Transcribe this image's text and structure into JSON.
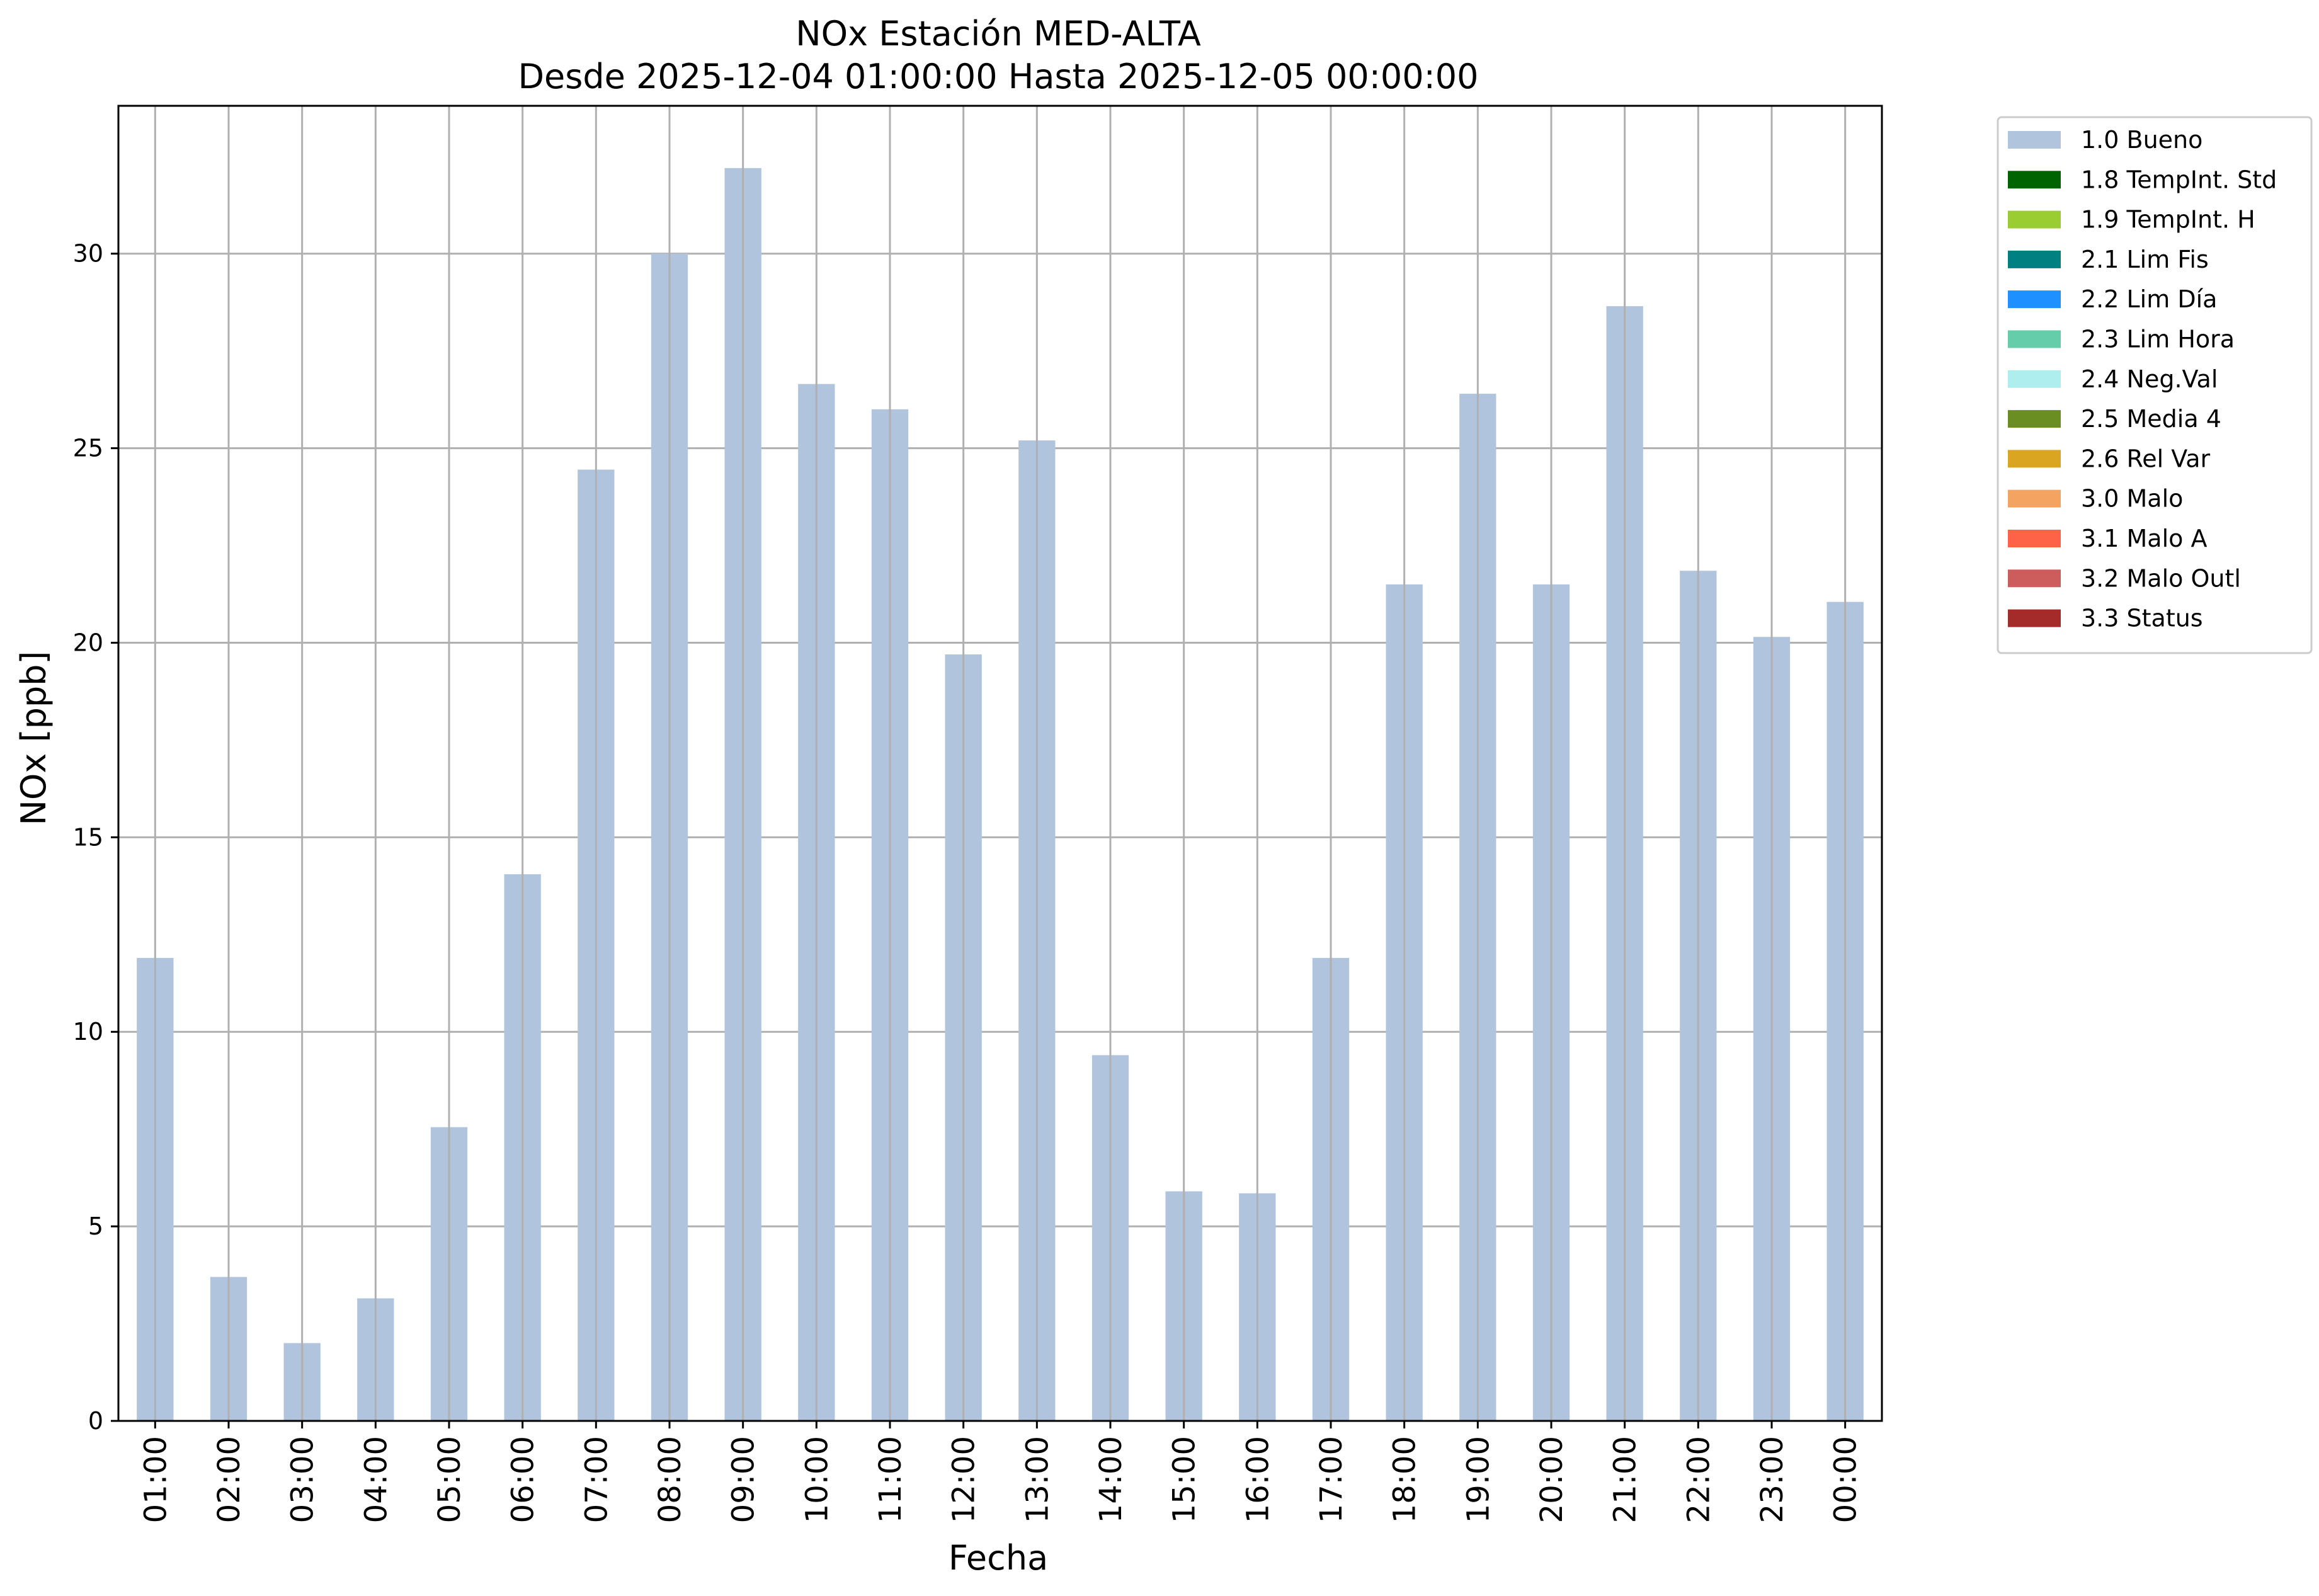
{
  "chart_data": {
    "type": "bar",
    "title": "NOx Estación MED-ALTA",
    "subtitle": "Desde 2025-12-04 01:00:00 Hasta 2025-12-05 00:00:00",
    "xlabel": "Fecha",
    "ylabel": "NOx [ppb]",
    "ylim": [
      0,
      33.8
    ],
    "yticks": [
      0,
      5,
      10,
      15,
      20,
      25,
      30
    ],
    "grid": true,
    "legend_position": "outside top-right",
    "categories": [
      "01:00",
      "02:00",
      "03:00",
      "04:00",
      "05:00",
      "06:00",
      "07:00",
      "08:00",
      "09:00",
      "10:00",
      "11:00",
      "12:00",
      "13:00",
      "14:00",
      "15:00",
      "16:00",
      "17:00",
      "18:00",
      "19:00",
      "20:00",
      "21:00",
      "22:00",
      "23:00",
      "00:00"
    ],
    "series": [
      {
        "name": "1.0 Bueno",
        "color": "#b0c4de",
        "values": [
          11.9,
          3.7,
          2.0,
          3.15,
          7.55,
          14.05,
          24.45,
          30.0,
          32.2,
          26.65,
          26.0,
          19.7,
          25.2,
          9.4,
          5.9,
          5.85,
          11.9,
          21.5,
          26.4,
          21.5,
          28.65,
          21.85,
          20.15,
          21.05
        ]
      }
    ],
    "legend": [
      {
        "label": "1.0 Bueno",
        "color": "#b0c4de"
      },
      {
        "label": "1.8 TempInt. Std",
        "color": "#006400"
      },
      {
        "label": "1.9 TempInt. H",
        "color": "#9acd32"
      },
      {
        "label": "2.1 Lim Fis",
        "color": "#008080"
      },
      {
        "label": "2.2 Lim Día",
        "color": "#1e90ff"
      },
      {
        "label": "2.3 Lim Hora",
        "color": "#66cdaa"
      },
      {
        "label": "2.4 Neg.Val",
        "color": "#afeeee"
      },
      {
        "label": "2.5 Media 4",
        "color": "#6b8e23"
      },
      {
        "label": "2.6 Rel Var",
        "color": "#daa520"
      },
      {
        "label": "3.0 Malo",
        "color": "#f4a460"
      },
      {
        "label": "3.1 Malo A",
        "color": "#ff6347"
      },
      {
        "label": "3.2 Malo Outl",
        "color": "#cd5c5c"
      },
      {
        "label": "3.3 Status",
        "color": "#a52a2a"
      }
    ]
  }
}
